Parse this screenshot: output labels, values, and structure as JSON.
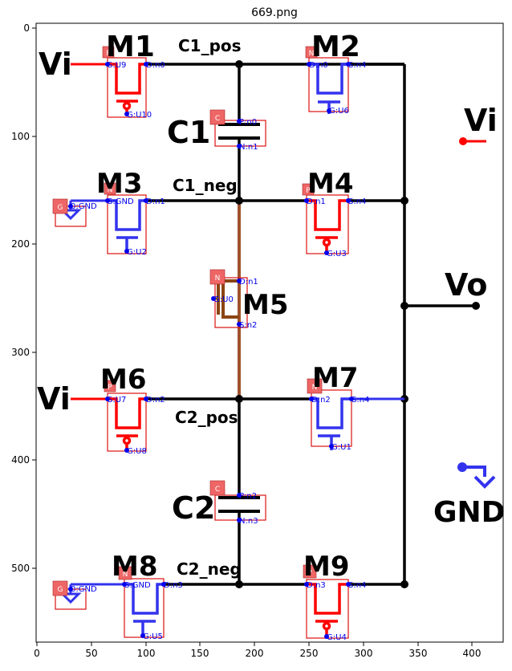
{
  "title": "669.png",
  "axes": {
    "xticks": [
      "0",
      "50",
      "100",
      "150",
      "200",
      "250",
      "300",
      "350",
      "400"
    ],
    "yticks": [
      "0",
      "100",
      "200",
      "300",
      "400",
      "500"
    ]
  },
  "labels": {
    "m1": "M1",
    "m2": "M2",
    "m3": "M3",
    "m4": "M4",
    "m5": "M5",
    "m6": "M6",
    "m7": "M7",
    "m8": "M8",
    "m9": "M9",
    "c1": "C1",
    "c2": "C2",
    "c1_pos": "C1_pos",
    "c1_neg": "C1_neg",
    "c2_pos": "C2_pos",
    "c2_neg": "C2_neg",
    "vi_1": "Vi",
    "vi_2": "Vi",
    "vi_3": "Vi",
    "vo": "Vo",
    "gnd": "GND"
  },
  "badges": {
    "m1": "P",
    "m2": "N",
    "m3": "N",
    "m4": "P",
    "m5": "N",
    "m6": "P",
    "m7": "N",
    "m8": "N",
    "m9": "P",
    "c1": "C",
    "c2": "C",
    "g1": "G",
    "g2": "G"
  },
  "pins": {
    "m1_s": "S:U9",
    "m1_d": "D:n0",
    "m1_g": "G:U10",
    "m2_d": "D:n0",
    "m2_s": "S:n4",
    "m2_g": "G:U6",
    "c1_p": "P:n0",
    "c1_n": "N:n1",
    "m3_s": "S:GND",
    "m3_d": "D:n1",
    "m3_g": "G:U2",
    "m4_d": "D:n1",
    "m4_s": "S:n4",
    "m4_g": "G:U3",
    "g1": "0:GND",
    "m5_d": "D:n1",
    "m5_g": "G:U0",
    "m5_s": "S:n2",
    "m6_s": "S:U7",
    "m6_d": "D:n2",
    "m6_g": "G:U8",
    "m7_d": "D:n2",
    "m7_s": "S:n4",
    "m7_g": "G:U1",
    "c2_p": "P:n2",
    "c2_n": "N:n3",
    "m8_s": "S:GND",
    "m8_d": "D:n3",
    "m8_g": "G:U5",
    "m9_d": "D:n3",
    "m9_s": "S:n4",
    "m9_g": "G:U4",
    "g2": "0:GND"
  },
  "colors": {
    "wire": "#000000",
    "pmos": "#ff0000",
    "nmos": "#3333ee",
    "bbox": "#dd1111",
    "badge": "#ee6666",
    "pin_text": "#0000ee",
    "m5_body": "#8b4513"
  }
}
